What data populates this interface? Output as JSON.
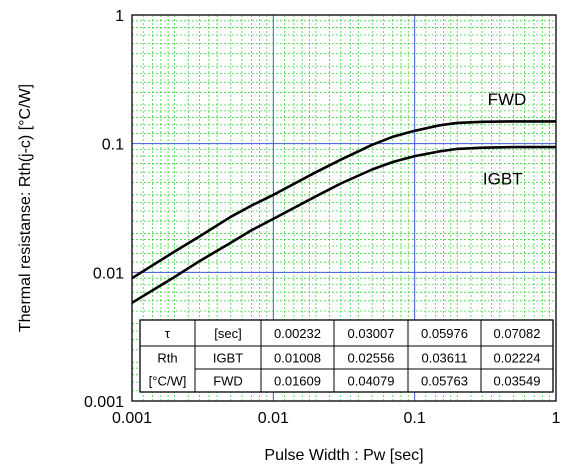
{
  "chart_data": {
    "type": "line",
    "x_scale": "log",
    "y_scale": "log",
    "xlim": [
      0.001,
      1
    ],
    "ylim": [
      0.001,
      1
    ],
    "xlabel": "Pulse Width : Pw [sec]",
    "ylabel": "Thermal resistanse: Rth(j-c) [°C/W]",
    "grid": true,
    "x_ticks": [
      "0.001",
      "0.01",
      "0.1",
      "1"
    ],
    "y_ticks": [
      "0.001",
      "0.01",
      "0.1",
      "1"
    ],
    "colors": {
      "major_grid": "#3b5bdb",
      "minor_grid": "#22cc22",
      "curve": "#000000"
    },
    "series": [
      {
        "name": "FWD",
        "x": [
          0.001,
          0.002,
          0.003,
          0.005,
          0.007,
          0.01,
          0.02,
          0.03,
          0.05,
          0.07,
          0.1,
          0.15,
          0.2,
          0.3,
          0.5,
          1
        ],
        "y": [
          0.009,
          0.0145,
          0.019,
          0.027,
          0.033,
          0.04,
          0.06,
          0.075,
          0.098,
          0.113,
          0.126,
          0.139,
          0.145,
          0.148,
          0.149,
          0.149
        ]
      },
      {
        "name": "IGBT",
        "x": [
          0.001,
          0.002,
          0.003,
          0.005,
          0.007,
          0.01,
          0.02,
          0.03,
          0.05,
          0.07,
          0.1,
          0.15,
          0.2,
          0.3,
          0.5,
          1
        ],
        "y": [
          0.0058,
          0.0092,
          0.0122,
          0.017,
          0.0212,
          0.026,
          0.039,
          0.049,
          0.063,
          0.072,
          0.08,
          0.087,
          0.091,
          0.093,
          0.094,
          0.094
        ]
      }
    ],
    "table": {
      "rows": [
        [
          "τ",
          "[sec]",
          "0.00232",
          "0.03007",
          "0.05976",
          "0.07082"
        ],
        [
          "Rth",
          "IGBT",
          "0.01008",
          "0.02556",
          "0.03611",
          "0.02224"
        ],
        [
          "[°C/W]",
          "FWD",
          "0.01609",
          "0.04079",
          "0.05763",
          "0.03549"
        ]
      ]
    }
  }
}
